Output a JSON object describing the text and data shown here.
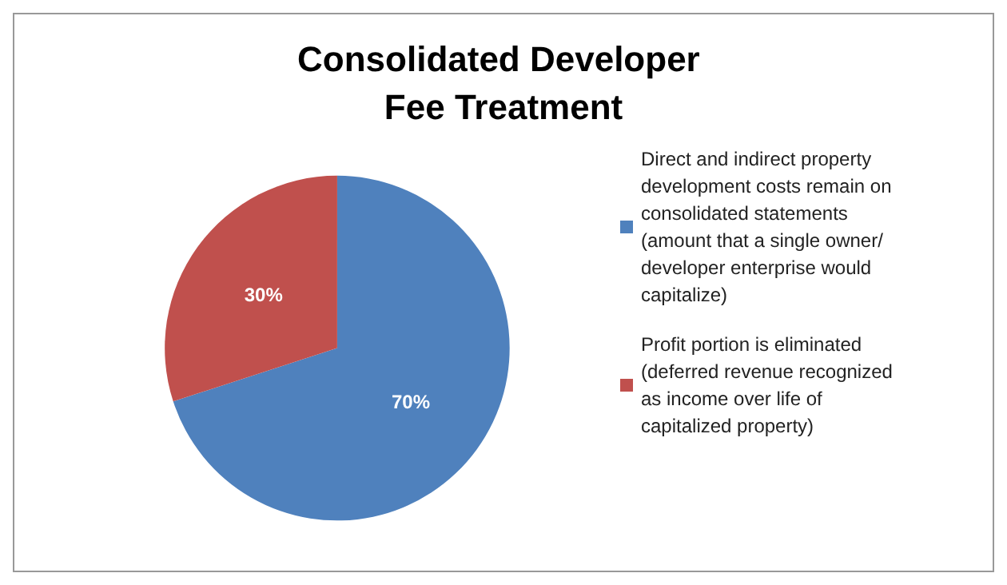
{
  "chart_data": {
    "type": "pie",
    "title": "Consolidated Developer Fee Treatment",
    "categories": [
      "Direct and indirect property development costs remain on consolidated statements (amount that a single owner/developer enterprise would capitalize)",
      "Profit portion is eliminated (deferred revenue recognized as income over life of capitalized property)"
    ],
    "values": [
      70,
      30
    ],
    "value_labels": [
      "70%",
      "30%"
    ],
    "colors": [
      "#4f81bd",
      "#c0504d"
    ],
    "legend": "right"
  }
}
